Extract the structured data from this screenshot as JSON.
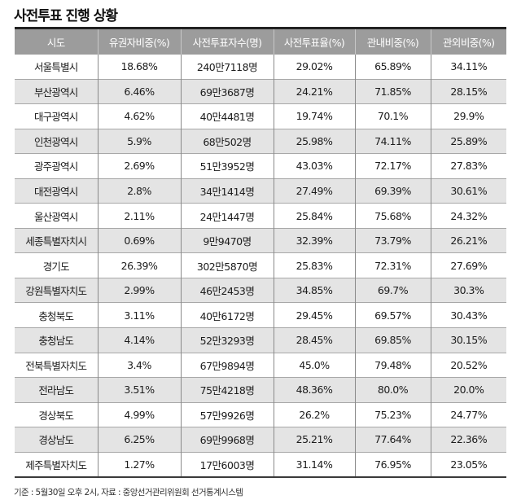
{
  "title": "사전투표 진행 상황",
  "table": {
    "headers": [
      "시도",
      "유권자비중(%)",
      "사전투표자수(명)",
      "사전투표율(%)",
      "관내비중(%)",
      "관외비중(%)"
    ],
    "rows": [
      [
        "서울특별시",
        "18.68%",
        "240만7118명",
        "29.02%",
        "65.89%",
        "34.11%"
      ],
      [
        "부산광역시",
        "6.46%",
        "69만3687명",
        "24.21%",
        "71.85%",
        "28.15%"
      ],
      [
        "대구광역시",
        "4.62%",
        "40만4481명",
        "19.74%",
        "70.1%",
        "29.9%"
      ],
      [
        "인천광역시",
        "5.9%",
        "68만502명",
        "25.98%",
        "74.11%",
        "25.89%"
      ],
      [
        "광주광역시",
        "2.69%",
        "51만3952명",
        "43.03%",
        "72.17%",
        "27.83%"
      ],
      [
        "대전광역시",
        "2.8%",
        "34만1414명",
        "27.49%",
        "69.39%",
        "30.61%"
      ],
      [
        "울산광역시",
        "2.11%",
        "24만1447명",
        "25.84%",
        "75.68%",
        "24.32%"
      ],
      [
        "세종특별자치시",
        "0.69%",
        "9만9470명",
        "32.39%",
        "73.79%",
        "26.21%"
      ],
      [
        "경기도",
        "26.39%",
        "302만5870명",
        "25.83%",
        "72.31%",
        "27.69%"
      ],
      [
        "강원특별자치도",
        "2.99%",
        "46만2453명",
        "34.85%",
        "69.7%",
        "30.3%"
      ],
      [
        "충청북도",
        "3.11%",
        "40만6172명",
        "29.45%",
        "69.57%",
        "30.43%"
      ],
      [
        "충청남도",
        "4.14%",
        "52만3293명",
        "28.45%",
        "69.85%",
        "30.15%"
      ],
      [
        "전북특별자치도",
        "3.4%",
        "67만9894명",
        "45.0%",
        "79.48%",
        "20.52%"
      ],
      [
        "전라남도",
        "3.51%",
        "75만4218명",
        "48.36%",
        "80.0%",
        "20.0%"
      ],
      [
        "경상북도",
        "4.99%",
        "57만9926명",
        "26.2%",
        "75.23%",
        "24.77%"
      ],
      [
        "경상남도",
        "6.25%",
        "69만9968명",
        "25.21%",
        "77.64%",
        "22.36%"
      ],
      [
        "제주특별자치도",
        "1.27%",
        "17만6003명",
        "31.14%",
        "76.95%",
        "23.05%"
      ]
    ]
  },
  "footer": "기준 : 5월30일 오후 2시, 자료 : 중앙선거관리위원회 선거통계시스템",
  "colors": {
    "header_bg": "#9c9c9c",
    "header_text": "#ffffff",
    "row_alt_bg": "#e4e4e4",
    "rule": "#222222"
  }
}
